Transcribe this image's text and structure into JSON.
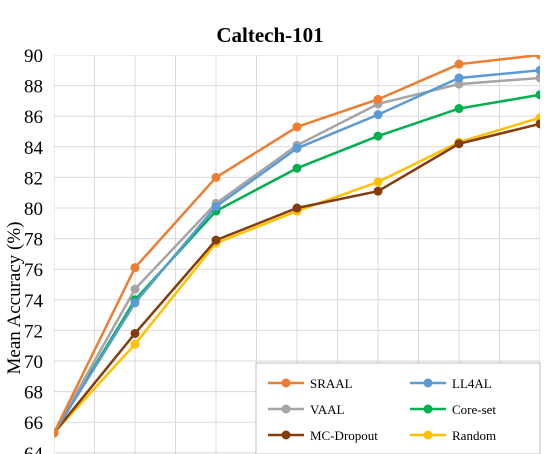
{
  "chart_data": {
    "type": "line",
    "title": "Caltech-101",
    "ylabel": "Mean Accuracy (%)",
    "xlabel": "",
    "ylim": [
      64,
      90
    ],
    "yticks": [
      64,
      66,
      68,
      70,
      72,
      74,
      76,
      78,
      80,
      82,
      84,
      86,
      88,
      90
    ],
    "x": [
      1,
      2,
      3,
      4,
      5,
      6,
      7
    ],
    "grid": true,
    "legend": "bottom-right",
    "series": [
      {
        "name": "SRAAL",
        "color": "#ED7D31",
        "values": [
          65.3,
          76.1,
          82.0,
          85.3,
          87.1,
          89.4,
          90.0
        ]
      },
      {
        "name": "LL4AL",
        "color": "#5B9BD5",
        "values": [
          65.3,
          73.8,
          80.1,
          83.9,
          86.1,
          88.5,
          89.0
        ]
      },
      {
        "name": "VAAL",
        "color": "#A5A5A5",
        "values": [
          65.3,
          74.7,
          80.3,
          84.1,
          86.8,
          88.1,
          88.5
        ]
      },
      {
        "name": "Core-set",
        "color": "#00B050",
        "values": [
          65.3,
          74.0,
          79.8,
          82.6,
          84.7,
          86.5,
          87.4
        ]
      },
      {
        "name": "MC-Dropout",
        "color": "#843C0C",
        "values": [
          65.3,
          71.8,
          77.9,
          80.0,
          81.1,
          84.2,
          85.5
        ]
      },
      {
        "name": "Random",
        "color": "#FFC000",
        "values": [
          65.3,
          71.1,
          77.7,
          79.8,
          81.7,
          84.3,
          85.9
        ]
      }
    ]
  }
}
